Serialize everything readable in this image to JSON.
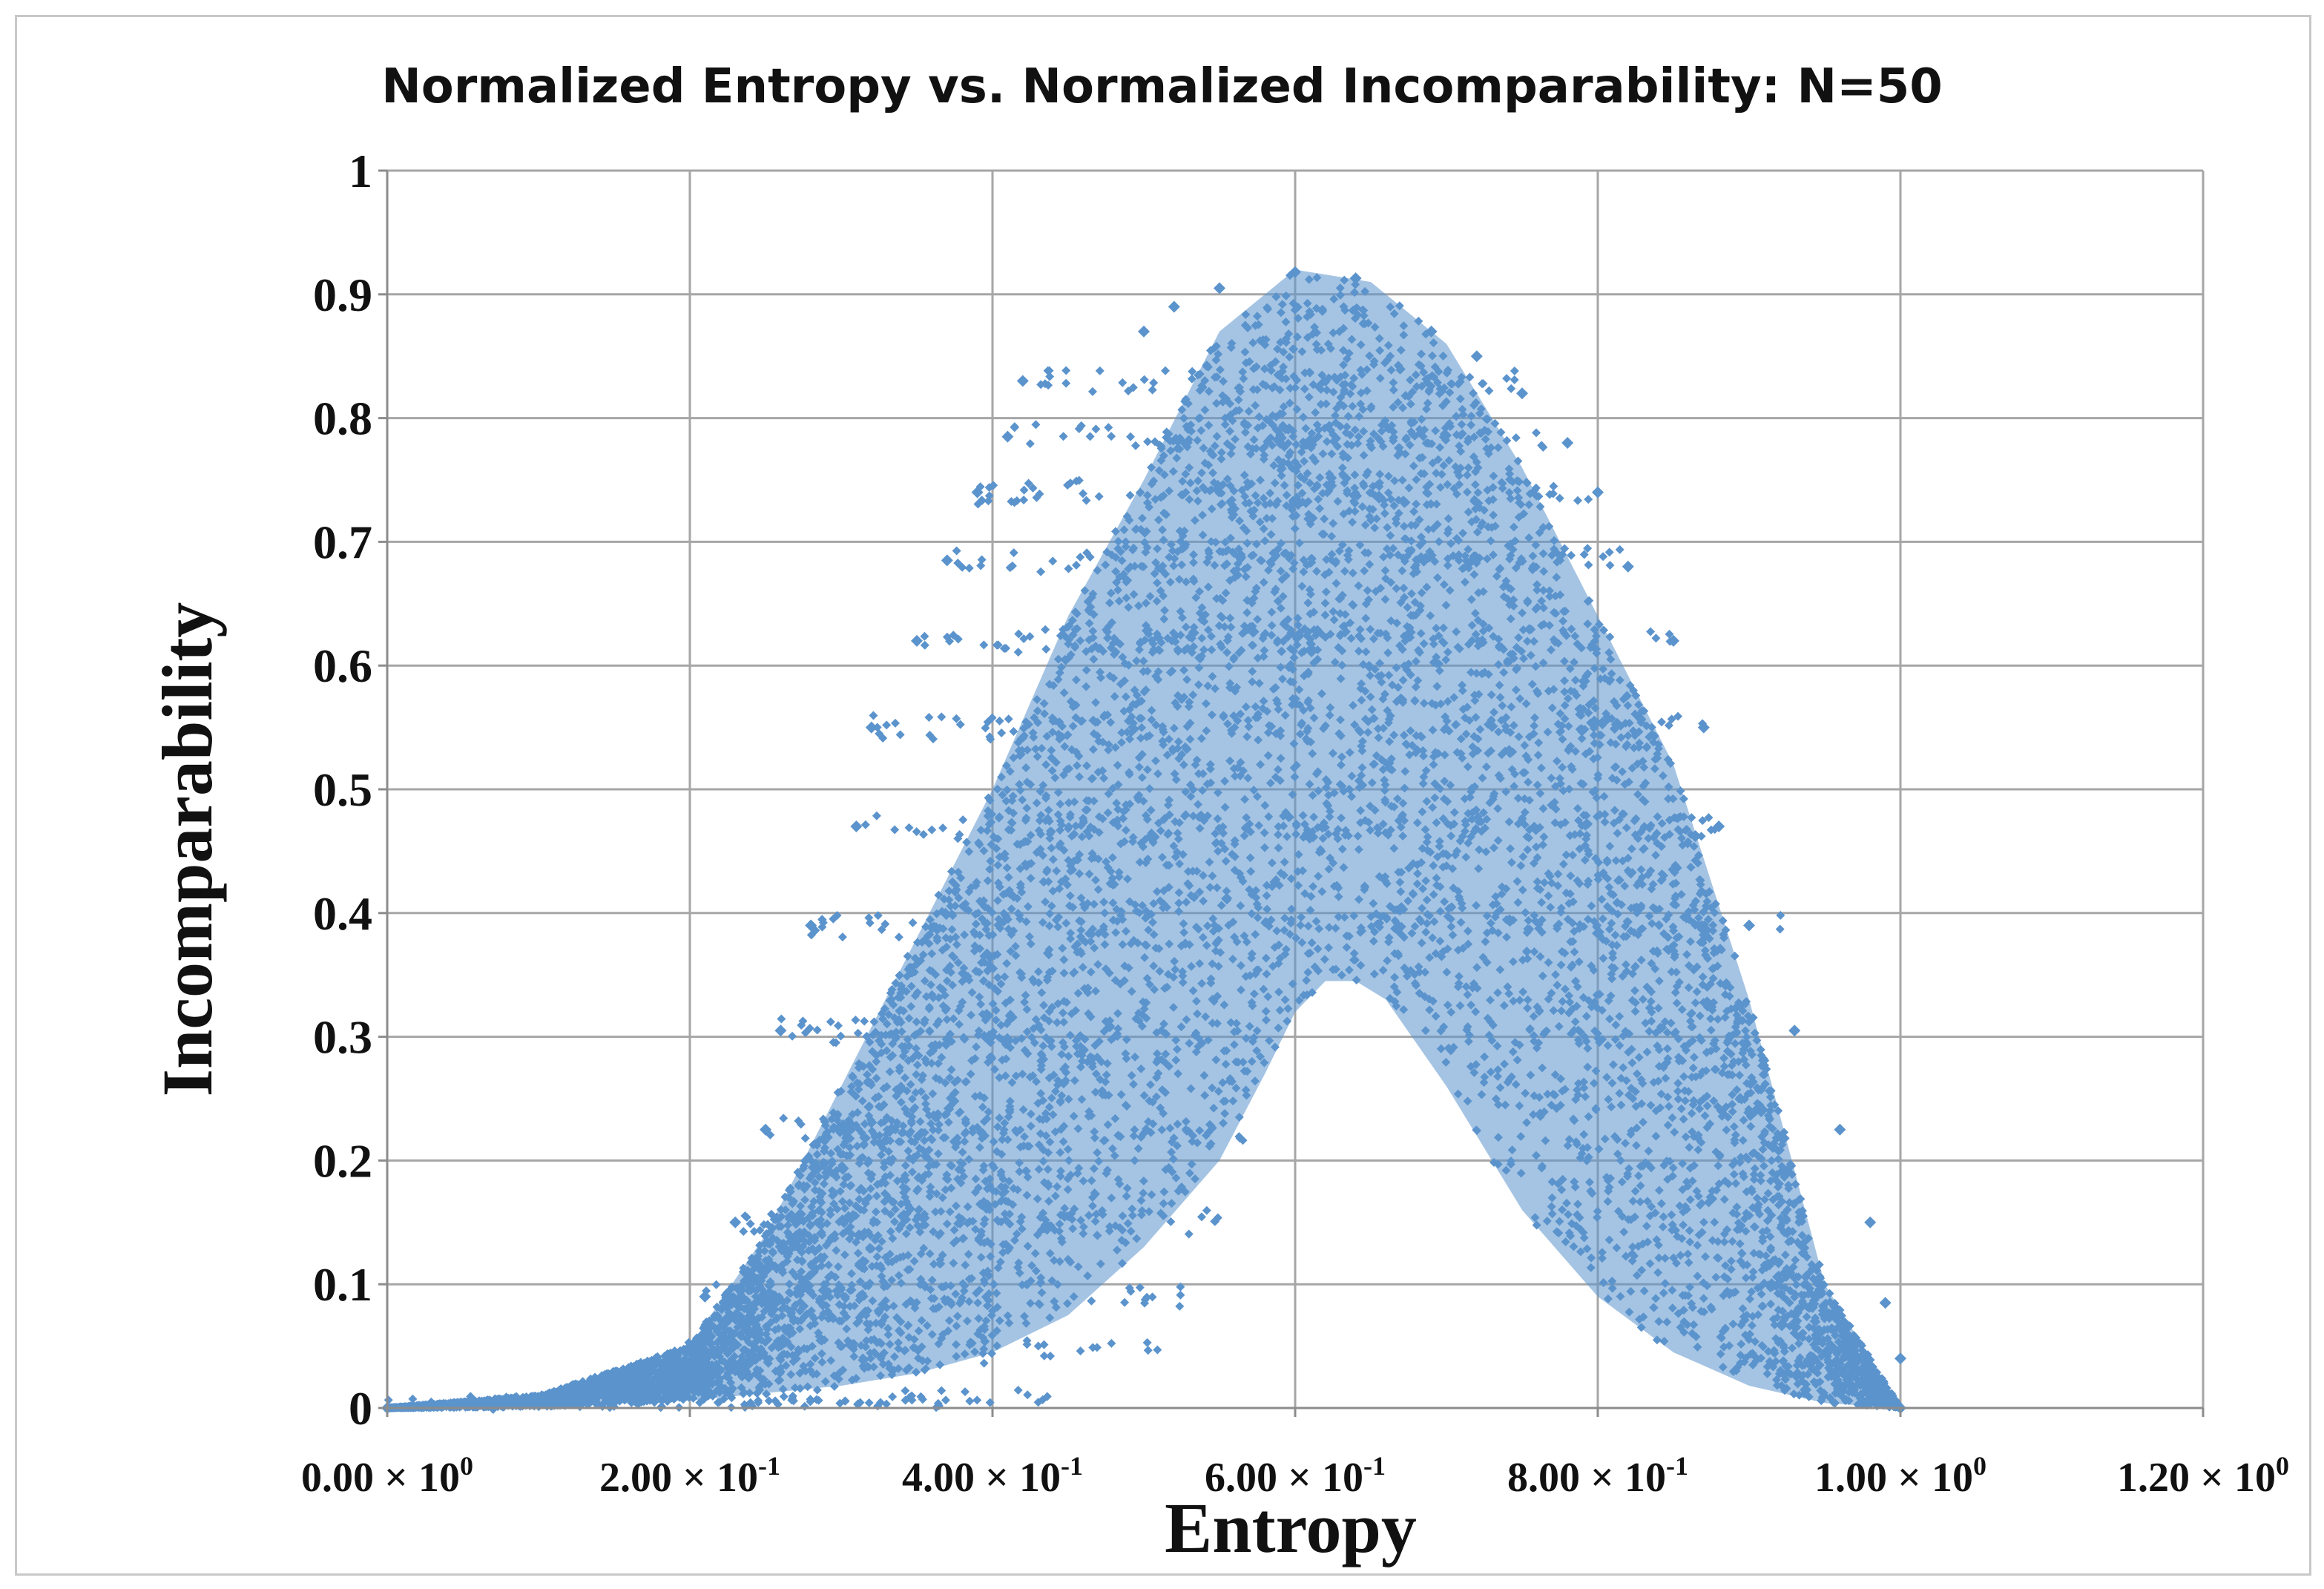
{
  "chart_data": {
    "type": "scatter",
    "title": "Normalized Entropy vs. Normalized Incomparability:  N=50",
    "xlabel": "Entropy",
    "ylabel": "Incomparability",
    "xlim": [
      0,
      1.2
    ],
    "ylim": [
      0,
      1
    ],
    "grid": true,
    "x_ticks": [
      {
        "value": 0.0,
        "mantissa": "0.00",
        "exponent": "0"
      },
      {
        "value": 0.2,
        "mantissa": "2.00",
        "exponent": "-1"
      },
      {
        "value": 0.4,
        "mantissa": "4.00",
        "exponent": "-1"
      },
      {
        "value": 0.6,
        "mantissa": "6.00",
        "exponent": "-1"
      },
      {
        "value": 0.8,
        "mantissa": "8.00",
        "exponent": "-1"
      },
      {
        "value": 1.0,
        "mantissa": "1.00",
        "exponent": "0"
      },
      {
        "value": 1.2,
        "mantissa": "1.20",
        "exponent": "0"
      }
    ],
    "times_symbol": "×",
    "x_tick_base": "10",
    "y_ticks": [
      {
        "value": 0,
        "label": "0"
      },
      {
        "value": 0.1,
        "label": "0.1"
      },
      {
        "value": 0.2,
        "label": "0.2"
      },
      {
        "value": 0.3,
        "label": "0.3"
      },
      {
        "value": 0.4,
        "label": "0.4"
      },
      {
        "value": 0.5,
        "label": "0.5"
      },
      {
        "value": 0.6,
        "label": "0.6"
      },
      {
        "value": 0.7,
        "label": "0.7"
      },
      {
        "value": 0.8,
        "label": "0.8"
      },
      {
        "value": 0.9,
        "label": "0.9"
      },
      {
        "value": 1,
        "label": "1"
      }
    ],
    "series": [
      {
        "name": "N=50",
        "color": "#5b93cc",
        "marker": "diamond",
        "lower_envelope": [
          [
            0.0,
            0.0
          ],
          [
            0.1,
            0.001
          ],
          [
            0.2,
            0.006
          ],
          [
            0.3,
            0.018
          ],
          [
            0.35,
            0.028
          ],
          [
            0.4,
            0.045
          ],
          [
            0.45,
            0.075
          ],
          [
            0.5,
            0.13
          ],
          [
            0.55,
            0.2
          ],
          [
            0.58,
            0.27
          ],
          [
            0.6,
            0.32
          ],
          [
            0.62,
            0.345
          ],
          [
            0.64,
            0.345
          ],
          [
            0.66,
            0.33
          ],
          [
            0.7,
            0.26
          ],
          [
            0.75,
            0.16
          ],
          [
            0.8,
            0.09
          ],
          [
            0.85,
            0.045
          ],
          [
            0.9,
            0.018
          ],
          [
            0.95,
            0.004
          ],
          [
            1.0,
            0.0
          ]
        ],
        "upper_envelope": [
          [
            0.0,
            0.0
          ],
          [
            0.1,
            0.01
          ],
          [
            0.2,
            0.05
          ],
          [
            0.25,
            0.14
          ],
          [
            0.3,
            0.26
          ],
          [
            0.35,
            0.38
          ],
          [
            0.4,
            0.5
          ],
          [
            0.45,
            0.64
          ],
          [
            0.5,
            0.75
          ],
          [
            0.55,
            0.87
          ],
          [
            0.6,
            0.92
          ],
          [
            0.65,
            0.91
          ],
          [
            0.7,
            0.86
          ],
          [
            0.75,
            0.76
          ],
          [
            0.8,
            0.64
          ],
          [
            0.85,
            0.52
          ],
          [
            0.9,
            0.33
          ],
          [
            0.95,
            0.1
          ],
          [
            1.0,
            0.0
          ]
        ],
        "fringe_points": [
          [
            0.0,
            0.0
          ],
          [
            0.07,
            0.0
          ],
          [
            0.12,
            0.005
          ],
          [
            0.15,
            0.015
          ],
          [
            0.19,
            0.045
          ],
          [
            0.21,
            0.09
          ],
          [
            0.23,
            0.15
          ],
          [
            0.25,
            0.225
          ],
          [
            0.26,
            0.305
          ],
          [
            0.28,
            0.39
          ],
          [
            0.31,
            0.47
          ],
          [
            0.32,
            0.55
          ],
          [
            0.35,
            0.62
          ],
          [
            0.37,
            0.685
          ],
          [
            0.39,
            0.74
          ],
          [
            0.41,
            0.785
          ],
          [
            0.42,
            0.83
          ],
          [
            0.5,
            0.87
          ],
          [
            0.52,
            0.89
          ],
          [
            0.55,
            0.905
          ],
          [
            0.6,
            0.918
          ],
          [
            0.64,
            0.913
          ],
          [
            0.69,
            0.87
          ],
          [
            0.72,
            0.85
          ],
          [
            0.75,
            0.82
          ],
          [
            0.78,
            0.78
          ],
          [
            0.8,
            0.74
          ],
          [
            0.82,
            0.68
          ],
          [
            0.85,
            0.62
          ],
          [
            0.87,
            0.55
          ],
          [
            0.88,
            0.47
          ],
          [
            0.9,
            0.39
          ],
          [
            0.93,
            0.305
          ],
          [
            0.96,
            0.225
          ],
          [
            0.98,
            0.15
          ],
          [
            0.99,
            0.085
          ],
          [
            1.0,
            0.04
          ],
          [
            1.0,
            0.0
          ]
        ],
        "arc_tips": [
          [
            0.0,
            0.0
          ],
          [
            0.07,
            0.0
          ],
          [
            0.12,
            0.005
          ],
          [
            0.19,
            0.045
          ],
          [
            0.21,
            0.09
          ],
          [
            0.23,
            0.15
          ],
          [
            0.25,
            0.225
          ],
          [
            0.26,
            0.305
          ],
          [
            0.28,
            0.39
          ],
          [
            0.31,
            0.47
          ],
          [
            0.32,
            0.55
          ],
          [
            0.35,
            0.62
          ],
          [
            0.37,
            0.685
          ],
          [
            0.39,
            0.74
          ],
          [
            0.41,
            0.785
          ],
          [
            0.43,
            0.83
          ]
        ]
      }
    ]
  }
}
